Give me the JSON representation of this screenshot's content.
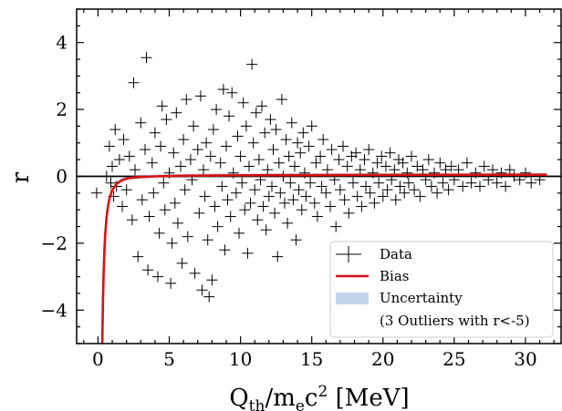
{
  "chart_data": {
    "type": "scatter",
    "title": "",
    "xlabel": {
      "base": "Q",
      "sub1": "th",
      "mid": "/m",
      "sub2": "e",
      "tail": "c",
      "sup": "2",
      "unit": " [MeV]"
    },
    "ylabel": "r",
    "xlim": [
      -1.5,
      32.5
    ],
    "ylim": [
      -5,
      5
    ],
    "xticks": [
      0,
      5,
      10,
      15,
      20,
      25,
      30
    ],
    "yticks": [
      -4,
      -2,
      0,
      2,
      4
    ],
    "grid": false,
    "legend_position": "lower-right",
    "legend": {
      "data_label": "Data",
      "bias_label": "Bias",
      "uncertainty_label": "Uncertainty",
      "note": "(3 Outliers with r<-5)"
    },
    "colors": {
      "data": "#000000",
      "bias": "#dd1111",
      "uncertainty": "#c2d6ea",
      "zero_line": "#000000"
    },
    "zero_line": 0,
    "bias_curve": {
      "description_form": "r = a - b / x^2",
      "x": [
        0.3,
        0.35,
        0.4,
        0.45,
        0.5,
        0.6,
        0.7,
        0.8,
        1.0,
        1.3,
        1.7,
        2.2,
        3,
        4,
        6,
        9,
        13,
        18,
        24,
        31.5
      ],
      "y": [
        -5.0,
        -3.65,
        -2.79,
        -2.2,
        -1.78,
        -1.22,
        -0.89,
        -0.67,
        -0.41,
        -0.22,
        -0.11,
        -0.05,
        -0.02,
        0.0,
        0.02,
        0.03,
        0.035,
        0.04,
        0.045,
        0.05
      ]
    },
    "series": [
      {
        "name": "Data",
        "marker": "+",
        "points": [
          [
            -0.1,
            -0.5
          ],
          [
            0.6,
            0.0
          ],
          [
            0.9,
            -0.2
          ],
          [
            1.1,
            -0.6
          ],
          [
            1.3,
            -0.3
          ],
          [
            1.0,
            0.3
          ],
          [
            0.8,
            0.9
          ],
          [
            1.2,
            1.4
          ],
          [
            1.5,
            0.5
          ],
          [
            1.7,
            -0.9
          ],
          [
            1.8,
            1.1
          ],
          [
            2.0,
            -0.4
          ],
          [
            2.2,
            0.6
          ],
          [
            2.4,
            -1.3
          ],
          [
            2.5,
            2.8
          ],
          [
            2.6,
            0.2
          ],
          [
            2.8,
            -2.4
          ],
          [
            3.0,
            1.6
          ],
          [
            3.1,
            -0.7
          ],
          [
            3.3,
            0.8
          ],
          [
            3.4,
            3.55
          ],
          [
            3.5,
            -2.8
          ],
          [
            3.6,
            -1.2
          ],
          [
            3.8,
            0.4
          ],
          [
            3.9,
            -0.5
          ],
          [
            4.0,
            1.3
          ],
          [
            4.2,
            -3.0
          ],
          [
            4.3,
            -1.7
          ],
          [
            4.4,
            0.9
          ],
          [
            4.5,
            2.1
          ],
          [
            4.6,
            -0.2
          ],
          [
            4.7,
            -1.0
          ],
          [
            4.8,
            1.7
          ],
          [
            5.0,
            0.1
          ],
          [
            5.1,
            -3.2
          ],
          [
            5.2,
            -2.0
          ],
          [
            5.3,
            0.7
          ],
          [
            5.4,
            -0.8
          ],
          [
            5.5,
            1.9
          ],
          [
            5.6,
            -1.4
          ],
          [
            5.8,
            0.3
          ],
          [
            5.9,
            -2.6
          ],
          [
            6.0,
            1.1
          ],
          [
            6.1,
            -0.4
          ],
          [
            6.2,
            2.3
          ],
          [
            6.3,
            -1.8
          ],
          [
            6.5,
            0.5
          ],
          [
            6.6,
            -0.1
          ],
          [
            6.7,
            1.5
          ],
          [
            6.8,
            -2.9
          ],
          [
            7.0,
            0.8
          ],
          [
            7.1,
            -1.1
          ],
          [
            7.2,
            2.4
          ],
          [
            7.3,
            -3.4
          ],
          [
            7.4,
            0.2
          ],
          [
            7.5,
            -0.6
          ],
          [
            7.6,
            1.0
          ],
          [
            7.7,
            -1.9
          ],
          [
            7.8,
            -3.6
          ],
          [
            7.9,
            0.6
          ],
          [
            8.0,
            -3.1
          ],
          [
            8.1,
            1.4
          ],
          [
            8.2,
            -0.9
          ],
          [
            8.3,
            2.0
          ],
          [
            8.4,
            -1.5
          ],
          [
            8.6,
            0.4
          ],
          [
            8.7,
            -0.3
          ],
          [
            8.8,
            2.6
          ],
          [
            8.9,
            -2.2
          ],
          [
            9.0,
            0.9
          ],
          [
            9.1,
            -0.7
          ],
          [
            9.2,
            1.8
          ],
          [
            9.3,
            -1.2
          ],
          [
            9.4,
            2.5
          ],
          [
            9.5,
            0.1
          ],
          [
            9.7,
            -0.5
          ],
          [
            9.8,
            1.2
          ],
          [
            9.9,
            -1.7
          ],
          [
            10.0,
            0.6
          ],
          [
            10.1,
            -0.2
          ],
          [
            10.2,
            2.2
          ],
          [
            10.3,
            -1.0
          ],
          [
            10.4,
            1.5
          ],
          [
            10.5,
            -2.3
          ],
          [
            10.6,
            0.3
          ],
          [
            10.7,
            -0.8
          ],
          [
            10.8,
            3.35
          ],
          [
            10.9,
            1.0
          ],
          [
            11.0,
            -0.4
          ],
          [
            11.1,
            1.9
          ],
          [
            11.2,
            -1.3
          ],
          [
            11.3,
            0.5
          ],
          [
            11.4,
            -0.1
          ],
          [
            11.5,
            2.1
          ],
          [
            11.6,
            -0.9
          ],
          [
            11.7,
            1.3
          ],
          [
            11.8,
            -1.6
          ],
          [
            11.9,
            0.2
          ],
          [
            12.0,
            -0.6
          ],
          [
            12.1,
            1.7
          ],
          [
            12.2,
            -0.3
          ],
          [
            12.3,
            0.8
          ],
          [
            12.4,
            -1.1
          ],
          [
            12.5,
            1.4
          ],
          [
            12.6,
            -2.4
          ],
          [
            12.7,
            0.4
          ],
          [
            12.8,
            -0.5
          ],
          [
            12.9,
            2.3
          ],
          [
            13.0,
            0.0
          ],
          [
            13.1,
            -0.8
          ],
          [
            13.2,
            1.1
          ],
          [
            13.3,
            -1.4
          ],
          [
            13.4,
            0.6
          ],
          [
            13.5,
            -0.2
          ],
          [
            13.6,
            1.6
          ],
          [
            13.7,
            -0.7
          ],
          [
            13.8,
            0.3
          ],
          [
            13.9,
            -1.9
          ],
          [
            14.0,
            1.0
          ],
          [
            14.1,
            -0.4
          ],
          [
            14.2,
            0.7
          ],
          [
            14.3,
            -1.0
          ],
          [
            14.4,
            1.3
          ],
          [
            14.5,
            0.1
          ],
          [
            14.6,
            -0.6
          ],
          [
            14.8,
            0.9
          ],
          [
            14.9,
            -0.2
          ],
          [
            15.0,
            1.5
          ],
          [
            15.2,
            -0.8
          ],
          [
            15.3,
            0.4
          ],
          [
            15.4,
            -1.2
          ],
          [
            15.6,
            0.6
          ],
          [
            15.7,
            -0.3
          ],
          [
            15.8,
            1.1
          ],
          [
            16.0,
            -0.5
          ],
          [
            16.1,
            0.2
          ],
          [
            16.3,
            -0.9
          ],
          [
            16.4,
            0.8
          ],
          [
            16.6,
            -0.1
          ],
          [
            16.7,
            -1.5
          ],
          [
            16.9,
            0.5
          ],
          [
            17.0,
            -0.4
          ],
          [
            17.2,
            0.9
          ],
          [
            17.3,
            -0.7
          ],
          [
            17.5,
            0.3
          ],
          [
            17.6,
            -1.1
          ],
          [
            17.8,
            0.6
          ],
          [
            17.9,
            -0.2
          ],
          [
            18.1,
            0.7
          ],
          [
            18.2,
            -0.6
          ],
          [
            18.4,
            0.2
          ],
          [
            18.5,
            -0.9
          ],
          [
            18.7,
            0.5
          ],
          [
            18.8,
            -0.3
          ],
          [
            19.0,
            0.8
          ],
          [
            19.1,
            -0.5
          ],
          [
            19.3,
            0.1
          ],
          [
            19.4,
            -0.8
          ],
          [
            19.6,
            0.4
          ],
          [
            19.7,
            -0.2
          ],
          [
            19.9,
            0.6
          ],
          [
            20.0,
            -0.6
          ],
          [
            20.2,
            0.3
          ],
          [
            20.3,
            -0.4
          ],
          [
            20.5,
            0.7
          ],
          [
            20.6,
            -0.1
          ],
          [
            20.8,
            0.2
          ],
          [
            20.9,
            -0.7
          ],
          [
            21.1,
            0.5
          ],
          [
            21.2,
            -0.3
          ],
          [
            21.4,
            0.4
          ],
          [
            21.5,
            -0.5
          ],
          [
            21.7,
            0.1
          ],
          [
            21.8,
            -0.2
          ],
          [
            22.0,
            0.6
          ],
          [
            22.2,
            -0.4
          ],
          [
            22.4,
            0.3
          ],
          [
            22.6,
            -0.6
          ],
          [
            22.8,
            0.2
          ],
          [
            23.0,
            -0.1
          ],
          [
            23.2,
            0.5
          ],
          [
            23.4,
            -0.3
          ],
          [
            23.6,
            0.1
          ],
          [
            23.8,
            -0.5
          ],
          [
            24.0,
            0.4
          ],
          [
            24.2,
            -0.2
          ],
          [
            24.4,
            0.2
          ],
          [
            24.6,
            -0.4
          ],
          [
            24.8,
            0.3
          ],
          [
            25.0,
            -0.1
          ],
          [
            25.3,
            0.2
          ],
          [
            25.6,
            -0.3
          ],
          [
            25.9,
            0.4
          ],
          [
            26.2,
            -0.2
          ],
          [
            26.5,
            0.1
          ],
          [
            26.8,
            -0.3
          ],
          [
            27.1,
            0.3
          ],
          [
            27.4,
            -0.1
          ],
          [
            27.7,
            0.2
          ],
          [
            28.0,
            -0.2
          ],
          [
            28.3,
            0.1
          ],
          [
            28.6,
            -0.3
          ],
          [
            28.9,
            0.2
          ],
          [
            29.2,
            0.0
          ],
          [
            29.6,
            -0.1
          ],
          [
            30.0,
            0.1
          ],
          [
            30.4,
            -0.2
          ],
          [
            31.0,
            -0.1
          ]
        ]
      }
    ]
  }
}
